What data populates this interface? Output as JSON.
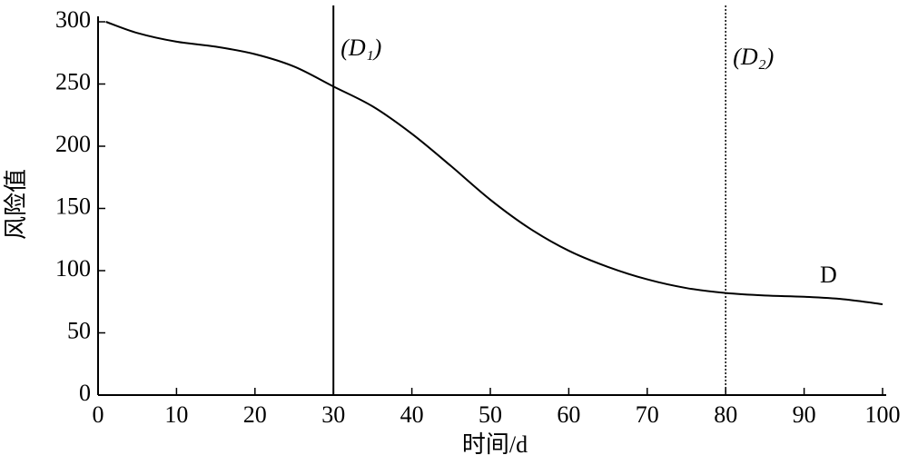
{
  "chart_data": {
    "type": "line",
    "xlabel": "时间/d",
    "ylabel": "风险值",
    "x": [
      1,
      5,
      10,
      15,
      20,
      25,
      30,
      35,
      40,
      45,
      50,
      55,
      60,
      65,
      70,
      75,
      80,
      85,
      90,
      95,
      100
    ],
    "series": [
      {
        "name": "D",
        "color": "#000000",
        "values": [
          300,
          291,
          284,
          280,
          274,
          264,
          248,
          232,
          210,
          184,
          157,
          134,
          116,
          103,
          93,
          86,
          82,
          80,
          79,
          77,
          73
        ]
      }
    ],
    "xlim": [
      0,
      100
    ],
    "xticks": [
      0,
      10,
      20,
      30,
      40,
      50,
      60,
      70,
      80,
      90,
      100
    ],
    "ylim": [
      0,
      300
    ],
    "yticks": [
      0,
      50,
      100,
      150,
      200,
      250,
      300
    ],
    "grid": false,
    "vlines": [
      {
        "x": 30,
        "label": "(D₁)",
        "style": "solid"
      },
      {
        "x": 80,
        "label": "(D₂)",
        "style": "dotted"
      }
    ]
  }
}
